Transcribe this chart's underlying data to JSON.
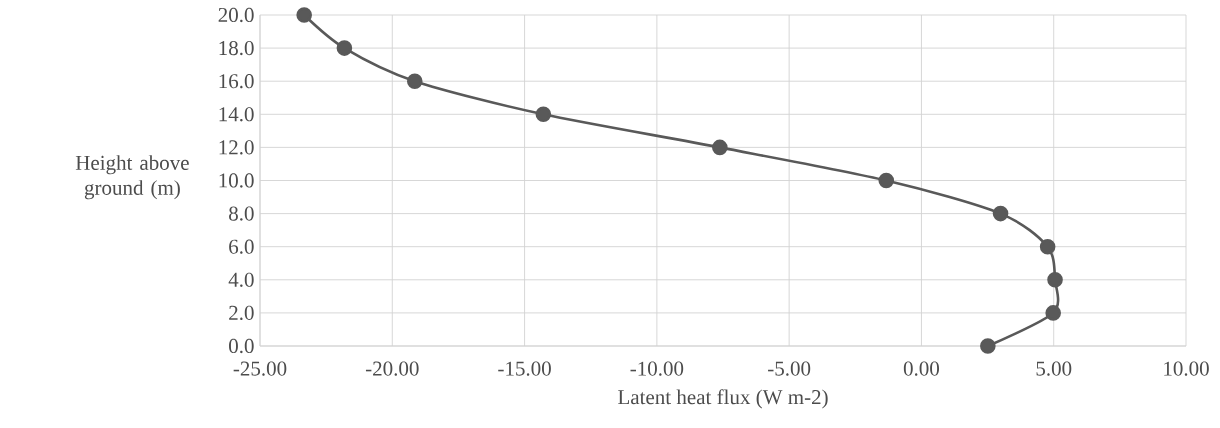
{
  "chart_data": {
    "type": "line",
    "xlabel": "Latent heat flux (W m-2)",
    "ylabel": "Height above ground (m)",
    "x": [
      2.51,
      4.98,
      5.05,
      4.77,
      2.99,
      -1.33,
      -7.62,
      -14.29,
      -19.15,
      -21.81,
      -23.33
    ],
    "values": [
      0,
      2,
      4,
      6,
      8,
      10,
      12,
      14,
      16,
      18,
      20
    ],
    "color": "#595959",
    "xlim": [
      -25,
      10
    ],
    "xticks": [
      {
        "value": -25,
        "label": "-25.00"
      },
      {
        "value": -20,
        "label": "-20.00"
      },
      {
        "value": -15,
        "label": "-15.00"
      },
      {
        "value": -10,
        "label": "-10.00"
      },
      {
        "value": -5,
        "label": "-5.00"
      },
      {
        "value": 0,
        "label": "0.00"
      },
      {
        "value": 5,
        "label": "5.00"
      },
      {
        "value": 10,
        "label": "10.00"
      }
    ],
    "ylim": [
      0,
      20
    ],
    "yticks": [
      {
        "value": 0,
        "label": "0.0"
      },
      {
        "value": 2,
        "label": "2.0"
      },
      {
        "value": 4,
        "label": "4.0"
      },
      {
        "value": 6,
        "label": "6.0"
      },
      {
        "value": 8,
        "label": "8.0"
      },
      {
        "value": 10,
        "label": "10.0"
      },
      {
        "value": 12,
        "label": "12.0"
      },
      {
        "value": 14,
        "label": "14.0"
      },
      {
        "value": 16,
        "label": "16.0"
      },
      {
        "value": 18,
        "label": "18.0"
      },
      {
        "value": 20,
        "label": "20.0"
      }
    ],
    "grid": true,
    "marker": "circle",
    "line_style": "solid"
  }
}
